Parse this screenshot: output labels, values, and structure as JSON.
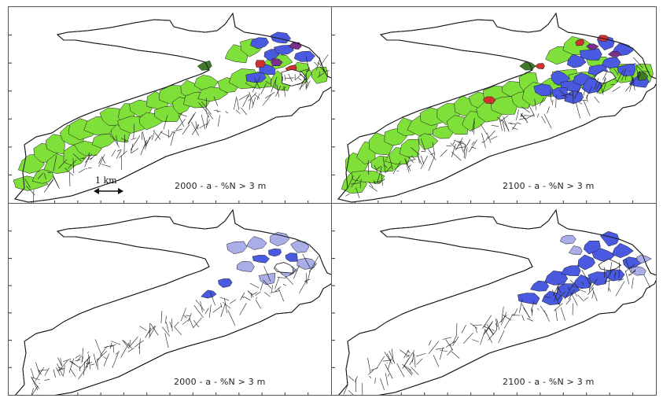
{
  "panels": [
    {
      "id": "tl",
      "caption": "2000 - a - %N > 3 m",
      "style": "green_dense"
    },
    {
      "id": "tr",
      "caption": "2100 - a - %N > 3 m",
      "style": "green_plus_blue"
    },
    {
      "id": "bl",
      "caption": "2000 - a - %N > 3 m",
      "style": "outline_light_blue"
    },
    {
      "id": "br",
      "caption": "2100 - a - %N > 3 m",
      "style": "outline_dense_blue"
    }
  ],
  "scale_bar": {
    "label": "1 km"
  },
  "colors": {
    "outline": "#1a1a1a",
    "green": "#7fe03a",
    "dark_green": "#3e7a2a",
    "blue": "#4a5ae0",
    "light_blue": "#a9aee8",
    "purple": "#7a2f8a",
    "red": "#d0302f",
    "teal": "#3a8ab5"
  }
}
